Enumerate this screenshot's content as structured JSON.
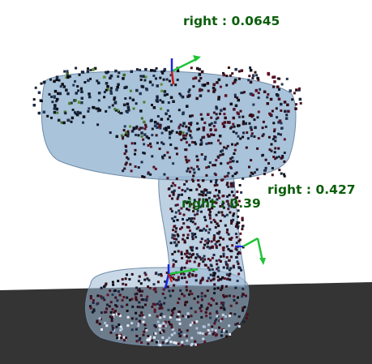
{
  "viewer": {
    "colors": {
      "background": "#ffffff",
      "floor": "#343434",
      "mesh_fill": "#9ab8d4",
      "mesh_edge": "#6f8aa6",
      "label": "#0b5e0b",
      "axis_x": "#22c33a",
      "axis_y": "#1a25e0",
      "axis_z": "#c81a1a"
    },
    "labels": [
      {
        "id": "top",
        "text": "right : 0.0645"
      },
      {
        "id": "right",
        "text": "right : 0.427"
      },
      {
        "id": "center",
        "text": "right : 0.39"
      }
    ],
    "gizmos": [
      {
        "id": "top",
        "icon": "axis-gizmo-icon"
      },
      {
        "id": "right",
        "icon": "axis-gizmo-icon"
      },
      {
        "id": "bottom",
        "icon": "axis-gizmo-icon"
      }
    ]
  }
}
